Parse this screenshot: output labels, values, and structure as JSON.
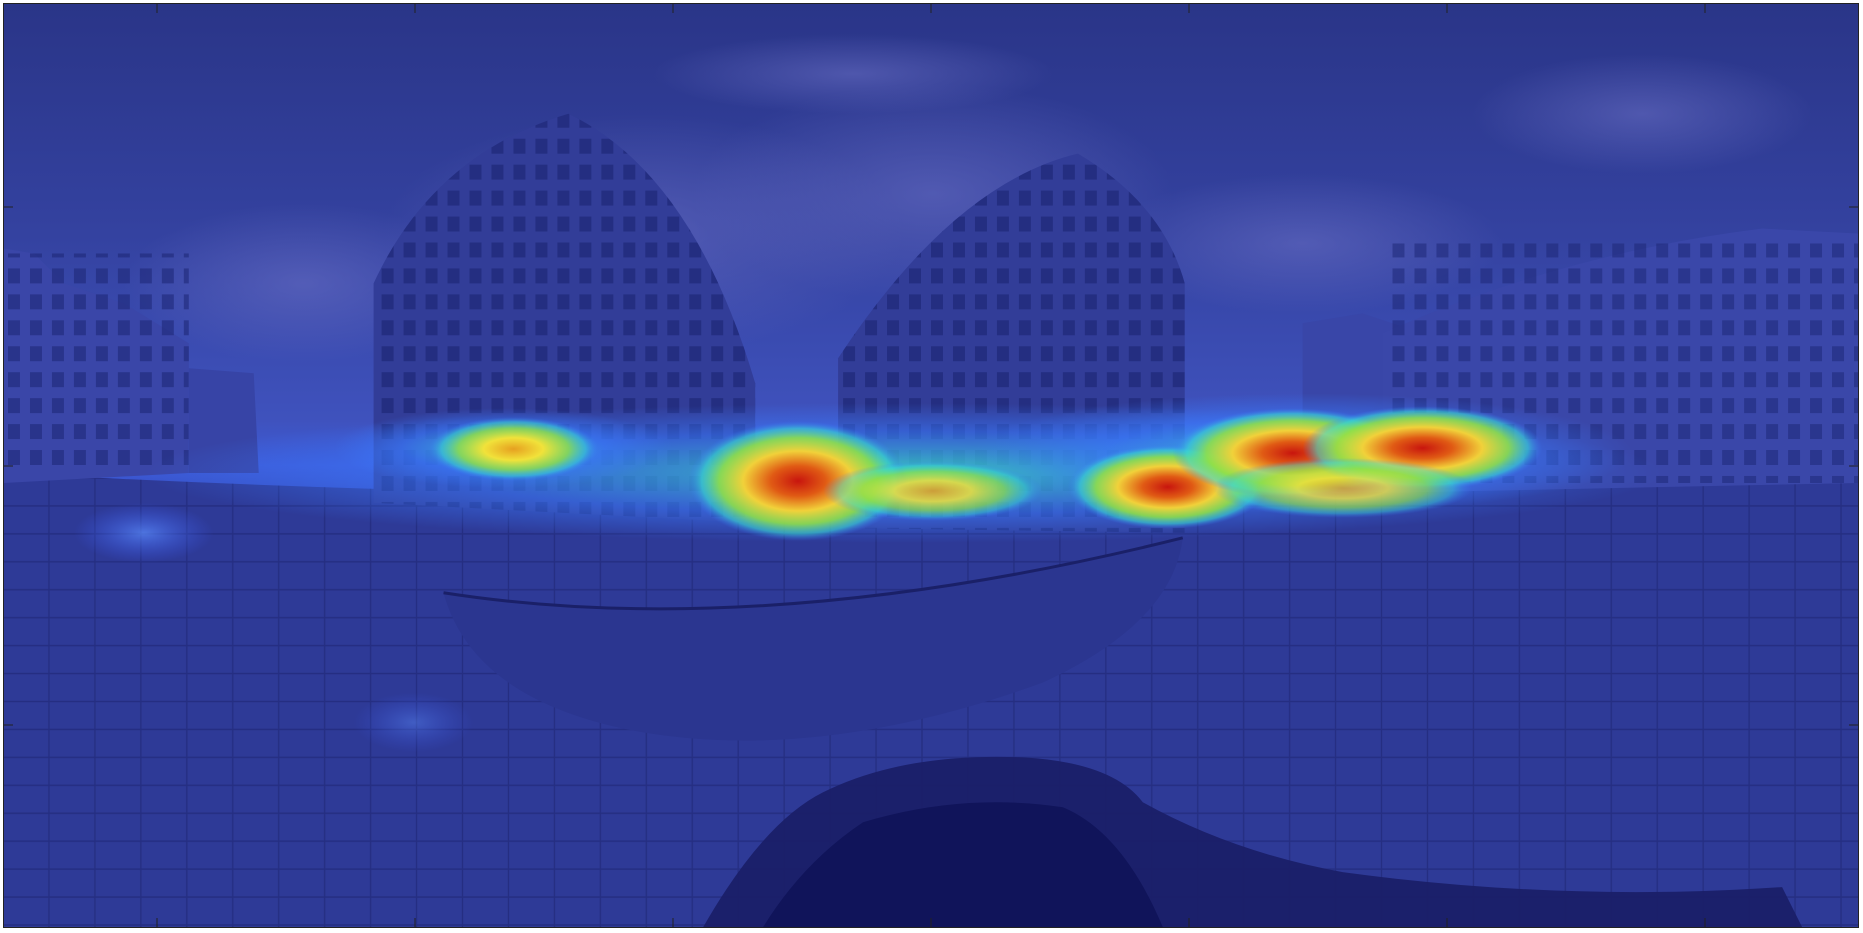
{
  "image": {
    "description_type": "equirectangular-panorama-saliency-overlay",
    "scene": "courtyard-between-buildings",
    "colormap": "jet",
    "colors": {
      "sky_dark": "#2b3a8f",
      "sky_mid": "#3f4fb3",
      "ground": "#2e3a95",
      "heat_low": "#3a7bff",
      "heat_mid": "#39e0c5",
      "heat_green": "#8fe04a",
      "heat_yellow": "#f1e23a",
      "heat_orange": "#f08a1c",
      "heat_red": "#d21a10",
      "frame": "#222222"
    }
  },
  "axes": {
    "x_ticks": [
      "",
      "",
      "",
      "",
      "",
      "",
      "",
      ""
    ],
    "y_ticks": [
      "",
      "",
      "",
      ""
    ]
  }
}
